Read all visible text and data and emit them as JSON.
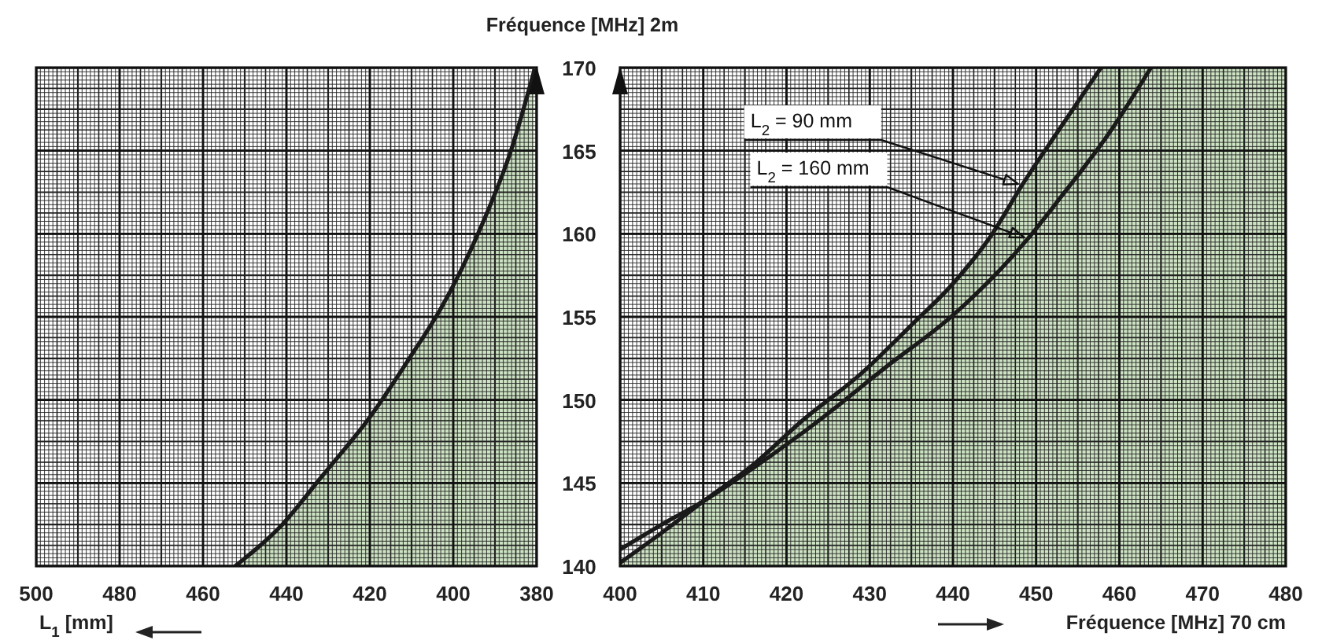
{
  "chart_data": [
    {
      "type": "area",
      "ylabel": "Fréquence [MHz] 2m",
      "xlabel": "L$_{1}$ [mm]",
      "xlim": [
        500,
        380
      ],
      "xticks": [
        500,
        480,
        460,
        440,
        420,
        400,
        380
      ],
      "ylim": [
        140,
        170
      ],
      "yticks": [
        140,
        145,
        150,
        155,
        160,
        165,
        170
      ],
      "grid": true,
      "series": [
        {
          "color": "#cde3c3",
          "x": [
            452.3,
            441,
            431.5,
            419.6,
            409.5,
            403.2,
            393.2,
            386.3,
            380.6
          ],
          "values": [
            140,
            142.5,
            145.4,
            149.1,
            152.9,
            155.4,
            160.5,
            164.9,
            169.8
          ]
        }
      ]
    },
    {
      "type": "line",
      "xlabel": "Fréquence [MHz] 70 cm",
      "xlim": [
        400,
        480
      ],
      "xticks": [
        400,
        410,
        420,
        430,
        440,
        450,
        460,
        470,
        480
      ],
      "ylim": [
        140,
        170
      ],
      "yticks": [
        140,
        145,
        150,
        155,
        160,
        165,
        170
      ],
      "grid": true,
      "tick_labels": "x",
      "series": [
        {
          "type": "area",
          "color": "#cde3c3",
          "x": [
            400,
            405,
            410,
            416,
            422,
            429,
            435,
            440,
            444.6,
            448.4,
            452.8,
            457.8
          ],
          "values": [
            140.2,
            142,
            143.9,
            146.1,
            148.8,
            151.6,
            154.5,
            157,
            159.9,
            163,
            166.3,
            170
          ]
        },
        {
          "color": "#1a1a1a",
          "x": [
            400,
            405,
            410,
            416,
            424,
            432,
            440,
            449,
            452.8,
            459.1,
            463.8
          ],
          "values": [
            141,
            142.5,
            143.9,
            145.9,
            148.8,
            152,
            155.1,
            159.7,
            162.1,
            166.3,
            170
          ]
        }
      ],
      "bands": [
        {
          "axis": "x",
          "from": 457.8,
          "to": 480,
          "color": "#cde3c3"
        }
      ],
      "annotations": [
        "L$_{2}$ = 90 mm",
        "L$_{2}$ = 160 mm"
      ]
    }
  ]
}
